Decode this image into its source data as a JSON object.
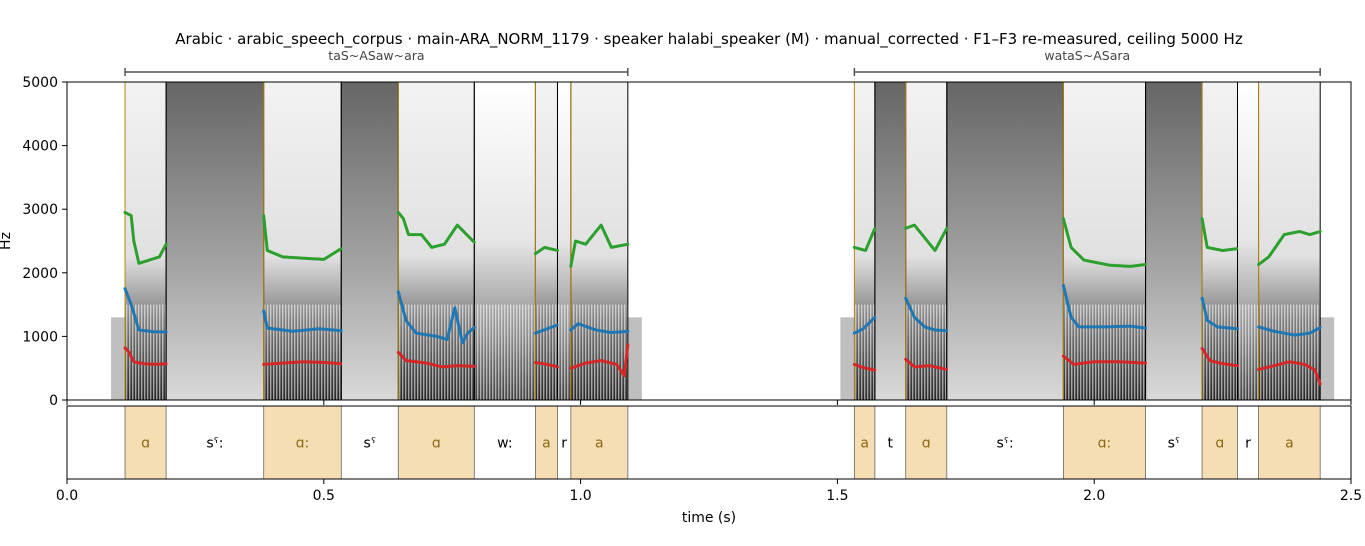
{
  "chart_data": {
    "type": "spectrogram",
    "title": "Arabic · arabic_speech_corpus · main-ARA_NORM_1179 · speaker halabi_speaker (M) · manual_corrected · F1–F3 re-measured, ceiling 5000 Hz",
    "xlabel": "time (s)",
    "ylabel": "Hz",
    "xlim": [
      0.0,
      2.5
    ],
    "ylim": [
      0,
      5000
    ],
    "xticks": [
      0.0,
      0.5,
      1.0,
      1.5,
      2.0,
      2.5
    ],
    "xtick_labels": [
      "0.0",
      "0.5",
      "1.0",
      "1.5",
      "2.0",
      "2.5"
    ],
    "yticks": [
      0,
      1000,
      2000,
      3000,
      4000,
      5000
    ],
    "ytick_labels": [
      "0",
      "1000",
      "2000",
      "3000",
      "4000",
      "5000"
    ],
    "colors": {
      "F1": "#d62728",
      "F2": "#1f77b4",
      "F3": "#2ca02c",
      "vowel_fill": "#f5deb3",
      "vowel_text": "#8b6914",
      "boundary_vowel": "#b8860b",
      "boundary_other": "#000000",
      "bracket": "#555555"
    },
    "words": [
      {
        "label": "taS~ASaw~ara",
        "start": 0.113,
        "end": 1.092
      },
      {
        "label": "wataS~ASara",
        "start": 1.533,
        "end": 2.44
      }
    ],
    "segments": [
      {
        "label": "ɑ",
        "start": 0.113,
        "end": 0.193,
        "vowel": true
      },
      {
        "label": "sˤ:",
        "start": 0.193,
        "end": 0.383,
        "vowel": false
      },
      {
        "label": "ɑ:",
        "start": 0.383,
        "end": 0.534,
        "vowel": true
      },
      {
        "label": "sˤ",
        "start": 0.534,
        "end": 0.645,
        "vowel": false
      },
      {
        "label": "ɑ",
        "start": 0.645,
        "end": 0.793,
        "vowel": true
      },
      {
        "label": "w:",
        "start": 0.793,
        "end": 0.912,
        "vowel": false
      },
      {
        "label": "a",
        "start": 0.912,
        "end": 0.955,
        "vowel": true
      },
      {
        "label": "r",
        "start": 0.955,
        "end": 0.981,
        "vowel": false
      },
      {
        "label": "a",
        "start": 0.981,
        "end": 1.092,
        "vowel": true
      },
      {
        "label": "a",
        "start": 1.533,
        "end": 1.573,
        "vowel": true
      },
      {
        "label": "t",
        "start": 1.573,
        "end": 1.633,
        "vowel": false
      },
      {
        "label": "ɑ",
        "start": 1.633,
        "end": 1.713,
        "vowel": true
      },
      {
        "label": "sˤ:",
        "start": 1.713,
        "end": 1.94,
        "vowel": false
      },
      {
        "label": "ɑ:",
        "start": 1.94,
        "end": 2.1,
        "vowel": true
      },
      {
        "label": "sˤ",
        "start": 2.1,
        "end": 2.21,
        "vowel": false
      },
      {
        "label": "ɑ",
        "start": 2.21,
        "end": 2.279,
        "vowel": true
      },
      {
        "label": "r",
        "start": 2.279,
        "end": 2.32,
        "vowel": false
      },
      {
        "label": "a",
        "start": 2.32,
        "end": 2.44,
        "vowel": true
      }
    ],
    "formant_tracks": {
      "F1": [
        [
          [
            0.113,
            820
          ],
          [
            0.12,
            760
          ],
          [
            0.13,
            600
          ],
          [
            0.15,
            570
          ],
          [
            0.17,
            560
          ],
          [
            0.193,
            570
          ]
        ],
        [
          [
            0.383,
            560
          ],
          [
            0.42,
            580
          ],
          [
            0.46,
            600
          ],
          [
            0.5,
            590
          ],
          [
            0.534,
            570
          ]
        ],
        [
          [
            0.645,
            750
          ],
          [
            0.66,
            620
          ],
          [
            0.7,
            580
          ],
          [
            0.73,
            520
          ],
          [
            0.76,
            540
          ],
          [
            0.793,
            530
          ]
        ],
        [
          [
            0.912,
            590
          ],
          [
            0.935,
            560
          ],
          [
            0.955,
            520
          ]
        ],
        [
          [
            0.981,
            500
          ],
          [
            1.01,
            580
          ],
          [
            1.04,
            620
          ],
          [
            1.07,
            560
          ],
          [
            1.085,
            380
          ],
          [
            1.092,
            870
          ]
        ],
        [
          [
            1.533,
            560
          ],
          [
            1.55,
            510
          ],
          [
            1.573,
            470
          ]
        ],
        [
          [
            1.633,
            640
          ],
          [
            1.65,
            520
          ],
          [
            1.68,
            540
          ],
          [
            1.713,
            480
          ]
        ],
        [
          [
            1.94,
            690
          ],
          [
            1.96,
            560
          ],
          [
            2.0,
            600
          ],
          [
            2.05,
            600
          ],
          [
            2.1,
            580
          ]
        ],
        [
          [
            2.21,
            810
          ],
          [
            2.225,
            620
          ],
          [
            2.25,
            570
          ],
          [
            2.279,
            540
          ]
        ],
        [
          [
            2.32,
            480
          ],
          [
            2.35,
            540
          ],
          [
            2.38,
            600
          ],
          [
            2.41,
            560
          ],
          [
            2.43,
            470
          ],
          [
            2.44,
            250
          ]
        ]
      ],
      "F2": [
        [
          [
            0.113,
            1750
          ],
          [
            0.125,
            1500
          ],
          [
            0.14,
            1100
          ],
          [
            0.17,
            1070
          ],
          [
            0.193,
            1070
          ]
        ],
        [
          [
            0.383,
            1400
          ],
          [
            0.39,
            1130
          ],
          [
            0.44,
            1080
          ],
          [
            0.49,
            1120
          ],
          [
            0.534,
            1090
          ]
        ],
        [
          [
            0.645,
            1700
          ],
          [
            0.66,
            1250
          ],
          [
            0.68,
            1050
          ],
          [
            0.72,
            1000
          ],
          [
            0.74,
            950
          ],
          [
            0.755,
            1450
          ],
          [
            0.77,
            900
          ],
          [
            0.78,
            1050
          ],
          [
            0.793,
            1140
          ]
        ],
        [
          [
            0.912,
            1050
          ],
          [
            0.935,
            1120
          ],
          [
            0.955,
            1180
          ]
        ],
        [
          [
            0.981,
            1100
          ],
          [
            0.995,
            1200
          ],
          [
            1.03,
            1100
          ],
          [
            1.06,
            1060
          ],
          [
            1.092,
            1080
          ]
        ],
        [
          [
            1.533,
            1050
          ],
          [
            1.55,
            1120
          ],
          [
            1.573,
            1300
          ]
        ],
        [
          [
            1.633,
            1600
          ],
          [
            1.65,
            1300
          ],
          [
            1.67,
            1150
          ],
          [
            1.69,
            1100
          ],
          [
            1.713,
            1090
          ]
        ],
        [
          [
            1.94,
            1800
          ],
          [
            1.955,
            1300
          ],
          [
            1.97,
            1150
          ],
          [
            2.02,
            1150
          ],
          [
            2.07,
            1160
          ],
          [
            2.1,
            1130
          ]
        ],
        [
          [
            2.21,
            1600
          ],
          [
            2.22,
            1250
          ],
          [
            2.24,
            1150
          ],
          [
            2.279,
            1120
          ]
        ],
        [
          [
            2.32,
            1150
          ],
          [
            2.35,
            1080
          ],
          [
            2.39,
            1020
          ],
          [
            2.42,
            1050
          ],
          [
            2.44,
            1140
          ]
        ]
      ],
      "F3": [
        [
          [
            0.113,
            2950
          ],
          [
            0.125,
            2900
          ],
          [
            0.13,
            2500
          ],
          [
            0.14,
            2150
          ],
          [
            0.16,
            2200
          ],
          [
            0.18,
            2250
          ],
          [
            0.193,
            2450
          ]
        ],
        [
          [
            0.383,
            2900
          ],
          [
            0.39,
            2350
          ],
          [
            0.42,
            2250
          ],
          [
            0.46,
            2230
          ],
          [
            0.5,
            2210
          ],
          [
            0.534,
            2380
          ]
        ],
        [
          [
            0.645,
            2950
          ],
          [
            0.655,
            2850
          ],
          [
            0.665,
            2600
          ],
          [
            0.69,
            2600
          ],
          [
            0.71,
            2400
          ],
          [
            0.735,
            2450
          ],
          [
            0.76,
            2750
          ],
          [
            0.793,
            2480
          ]
        ],
        [
          [
            0.912,
            2300
          ],
          [
            0.93,
            2400
          ],
          [
            0.955,
            2350
          ]
        ],
        [
          [
            0.981,
            2100
          ],
          [
            0.99,
            2500
          ],
          [
            1.01,
            2450
          ],
          [
            1.04,
            2750
          ],
          [
            1.06,
            2400
          ],
          [
            1.092,
            2450
          ]
        ],
        [
          [
            1.533,
            2400
          ],
          [
            1.555,
            2350
          ],
          [
            1.573,
            2700
          ]
        ],
        [
          [
            1.633,
            2700
          ],
          [
            1.65,
            2750
          ],
          [
            1.67,
            2550
          ],
          [
            1.69,
            2350
          ],
          [
            1.713,
            2700
          ]
        ],
        [
          [
            1.94,
            2850
          ],
          [
            1.955,
            2400
          ],
          [
            1.98,
            2200
          ],
          [
            2.03,
            2120
          ],
          [
            2.07,
            2100
          ],
          [
            2.1,
            2130
          ]
        ],
        [
          [
            2.21,
            2850
          ],
          [
            2.22,
            2400
          ],
          [
            2.25,
            2350
          ],
          [
            2.279,
            2380
          ]
        ],
        [
          [
            2.32,
            2130
          ],
          [
            2.34,
            2250
          ],
          [
            2.37,
            2600
          ],
          [
            2.4,
            2650
          ],
          [
            2.42,
            2600
          ],
          [
            2.44,
            2650
          ]
        ]
      ]
    }
  }
}
